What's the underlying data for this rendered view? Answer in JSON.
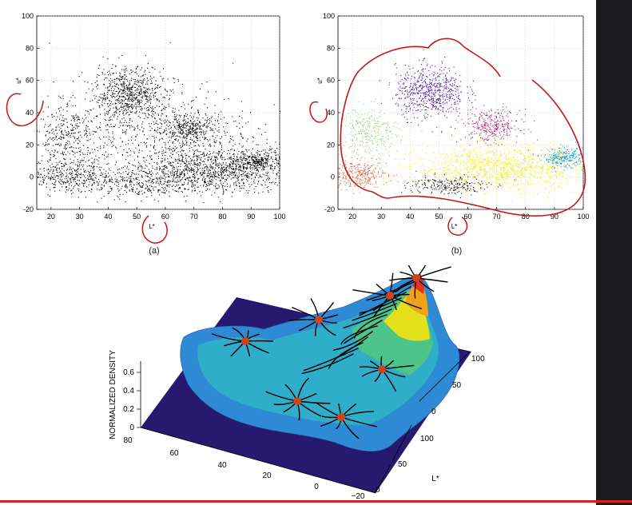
{
  "chart_data": [
    {
      "type": "scatter",
      "panel_label": "(a)",
      "xlabel": "L*",
      "ylabel": "u*",
      "xlim": [
        15,
        100
      ],
      "ylim": [
        -20,
        100
      ],
      "xticks": [
        "20",
        "30",
        "40",
        "50",
        "60",
        "70",
        "80",
        "90",
        "100"
      ],
      "yticks": [
        "-20",
        "0",
        "20",
        "40",
        "60",
        "80",
        "100"
      ],
      "grid": true,
      "point_color": "#000000",
      "clusters": [
        {
          "cx": 47,
          "cy": 52,
          "sx": 6,
          "sy": 8,
          "n": 650
        },
        {
          "cx": 68,
          "cy": 30,
          "sx": 5,
          "sy": 4,
          "n": 300
        },
        {
          "cx": 78,
          "cy": 5,
          "sx": 14,
          "sy": 7,
          "n": 1100
        },
        {
          "cx": 93,
          "cy": 10,
          "sx": 4,
          "sy": 3,
          "n": 250
        },
        {
          "cx": 25,
          "cy": 25,
          "sx": 6,
          "sy": 10,
          "n": 300
        },
        {
          "cx": 25,
          "cy": 2,
          "sx": 7,
          "sy": 5,
          "n": 300
        },
        {
          "cx": 50,
          "cy": -3,
          "sx": 14,
          "sy": 5,
          "n": 450
        },
        {
          "cx": 55,
          "cy": 30,
          "sx": 18,
          "sy": 15,
          "n": 700
        }
      ]
    },
    {
      "type": "scatter",
      "panel_label": "(b)",
      "xlabel": "L*",
      "ylabel": "u*",
      "xlim": [
        15,
        100
      ],
      "ylim": [
        -20,
        100
      ],
      "xticks": [
        "20",
        "30",
        "40",
        "50",
        "60",
        "70",
        "80",
        "90",
        "100"
      ],
      "yticks": [
        "-20",
        "0",
        "20",
        "40",
        "60",
        "80",
        "100"
      ],
      "grid": true,
      "clusters": [
        {
          "name": "purple",
          "color": "#4b1a9e",
          "cx": 47,
          "cy": 53,
          "sx": 6,
          "sy": 8,
          "n": 650
        },
        {
          "name": "magenta",
          "color": "#b0206e",
          "cx": 68,
          "cy": 32,
          "sx": 5,
          "sy": 5,
          "n": 320
        },
        {
          "name": "yellow",
          "color": "#f2ea1a",
          "cx": 72,
          "cy": 6,
          "sx": 15,
          "sy": 7,
          "n": 1300
        },
        {
          "name": "cyan",
          "color": "#22a3c9",
          "cx": 93,
          "cy": 12,
          "sx": 3.5,
          "sy": 3,
          "n": 260
        },
        {
          "name": "green",
          "color": "#8fcf76",
          "cx": 26,
          "cy": 28,
          "sx": 5,
          "sy": 8,
          "n": 300
        },
        {
          "name": "orange",
          "color": "#e0603a",
          "cx": 22,
          "cy": 2,
          "sx": 5,
          "sy": 4,
          "n": 300
        },
        {
          "name": "black",
          "color": "#111111",
          "cx": 53,
          "cy": -5,
          "sx": 7,
          "sy": 3,
          "n": 220
        }
      ]
    },
    {
      "type": "surface",
      "zlabel": "NORMALIZED DENSITY",
      "xlabel": "L*",
      "zticks": [
        "0",
        "0.2",
        "0.4",
        "0.6"
      ],
      "left_axis_ticks": [
        "80",
        "60",
        "40",
        "20",
        "0",
        "−20"
      ],
      "right_axis_ticks": [
        "0",
        "50",
        "100"
      ],
      "back_axis_ticks": [
        "100",
        "50",
        "0"
      ],
      "colormap": [
        "#27196f",
        "#1f4fa8",
        "#2e8ad4",
        "#2fb3c7",
        "#4cc48a",
        "#9fd33d",
        "#e4e01a",
        "#f0a21a",
        "#e0331c"
      ],
      "mode_marker_color": "#d2431c"
    }
  ]
}
